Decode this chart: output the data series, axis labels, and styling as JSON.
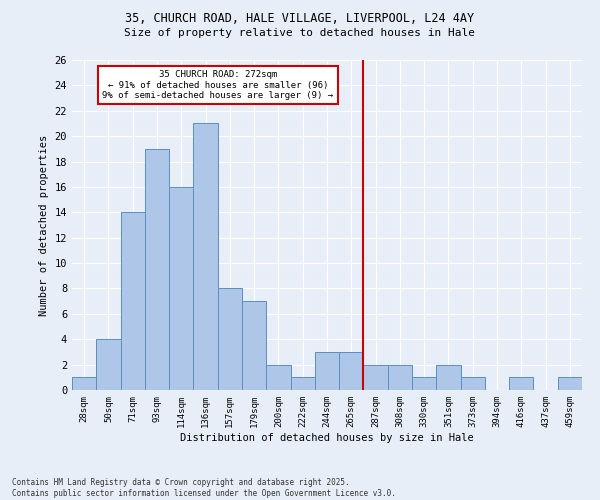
{
  "title1": "35, CHURCH ROAD, HALE VILLAGE, LIVERPOOL, L24 4AY",
  "title2": "Size of property relative to detached houses in Hale",
  "xlabel": "Distribution of detached houses by size in Hale",
  "ylabel": "Number of detached properties",
  "categories": [
    "28sqm",
    "50sqm",
    "71sqm",
    "93sqm",
    "114sqm",
    "136sqm",
    "157sqm",
    "179sqm",
    "200sqm",
    "222sqm",
    "244sqm",
    "265sqm",
    "287sqm",
    "308sqm",
    "330sqm",
    "351sqm",
    "373sqm",
    "394sqm",
    "416sqm",
    "437sqm",
    "459sqm"
  ],
  "values": [
    1,
    4,
    14,
    19,
    16,
    21,
    8,
    7,
    2,
    1,
    3,
    3,
    2,
    2,
    1,
    2,
    1,
    0,
    1,
    0,
    1
  ],
  "bar_color": "#aec6e8",
  "bar_edge_color": "#5a8fc2",
  "vline_x": 11.5,
  "vline_color": "#cc0000",
  "annotation_text": "35 CHURCH ROAD: 272sqm\n← 91% of detached houses are smaller (96)\n9% of semi-detached houses are larger (9) →",
  "annotation_box_color": "#ffffff",
  "annotation_box_edge_color": "#cc0000",
  "ylim": [
    0,
    26
  ],
  "yticks": [
    0,
    2,
    4,
    6,
    8,
    10,
    12,
    14,
    16,
    18,
    20,
    22,
    24,
    26
  ],
  "background_color": "#e8eef7",
  "grid_color": "#ffffff",
  "footer": "Contains HM Land Registry data © Crown copyright and database right 2025.\nContains public sector information licensed under the Open Government Licence v3.0."
}
